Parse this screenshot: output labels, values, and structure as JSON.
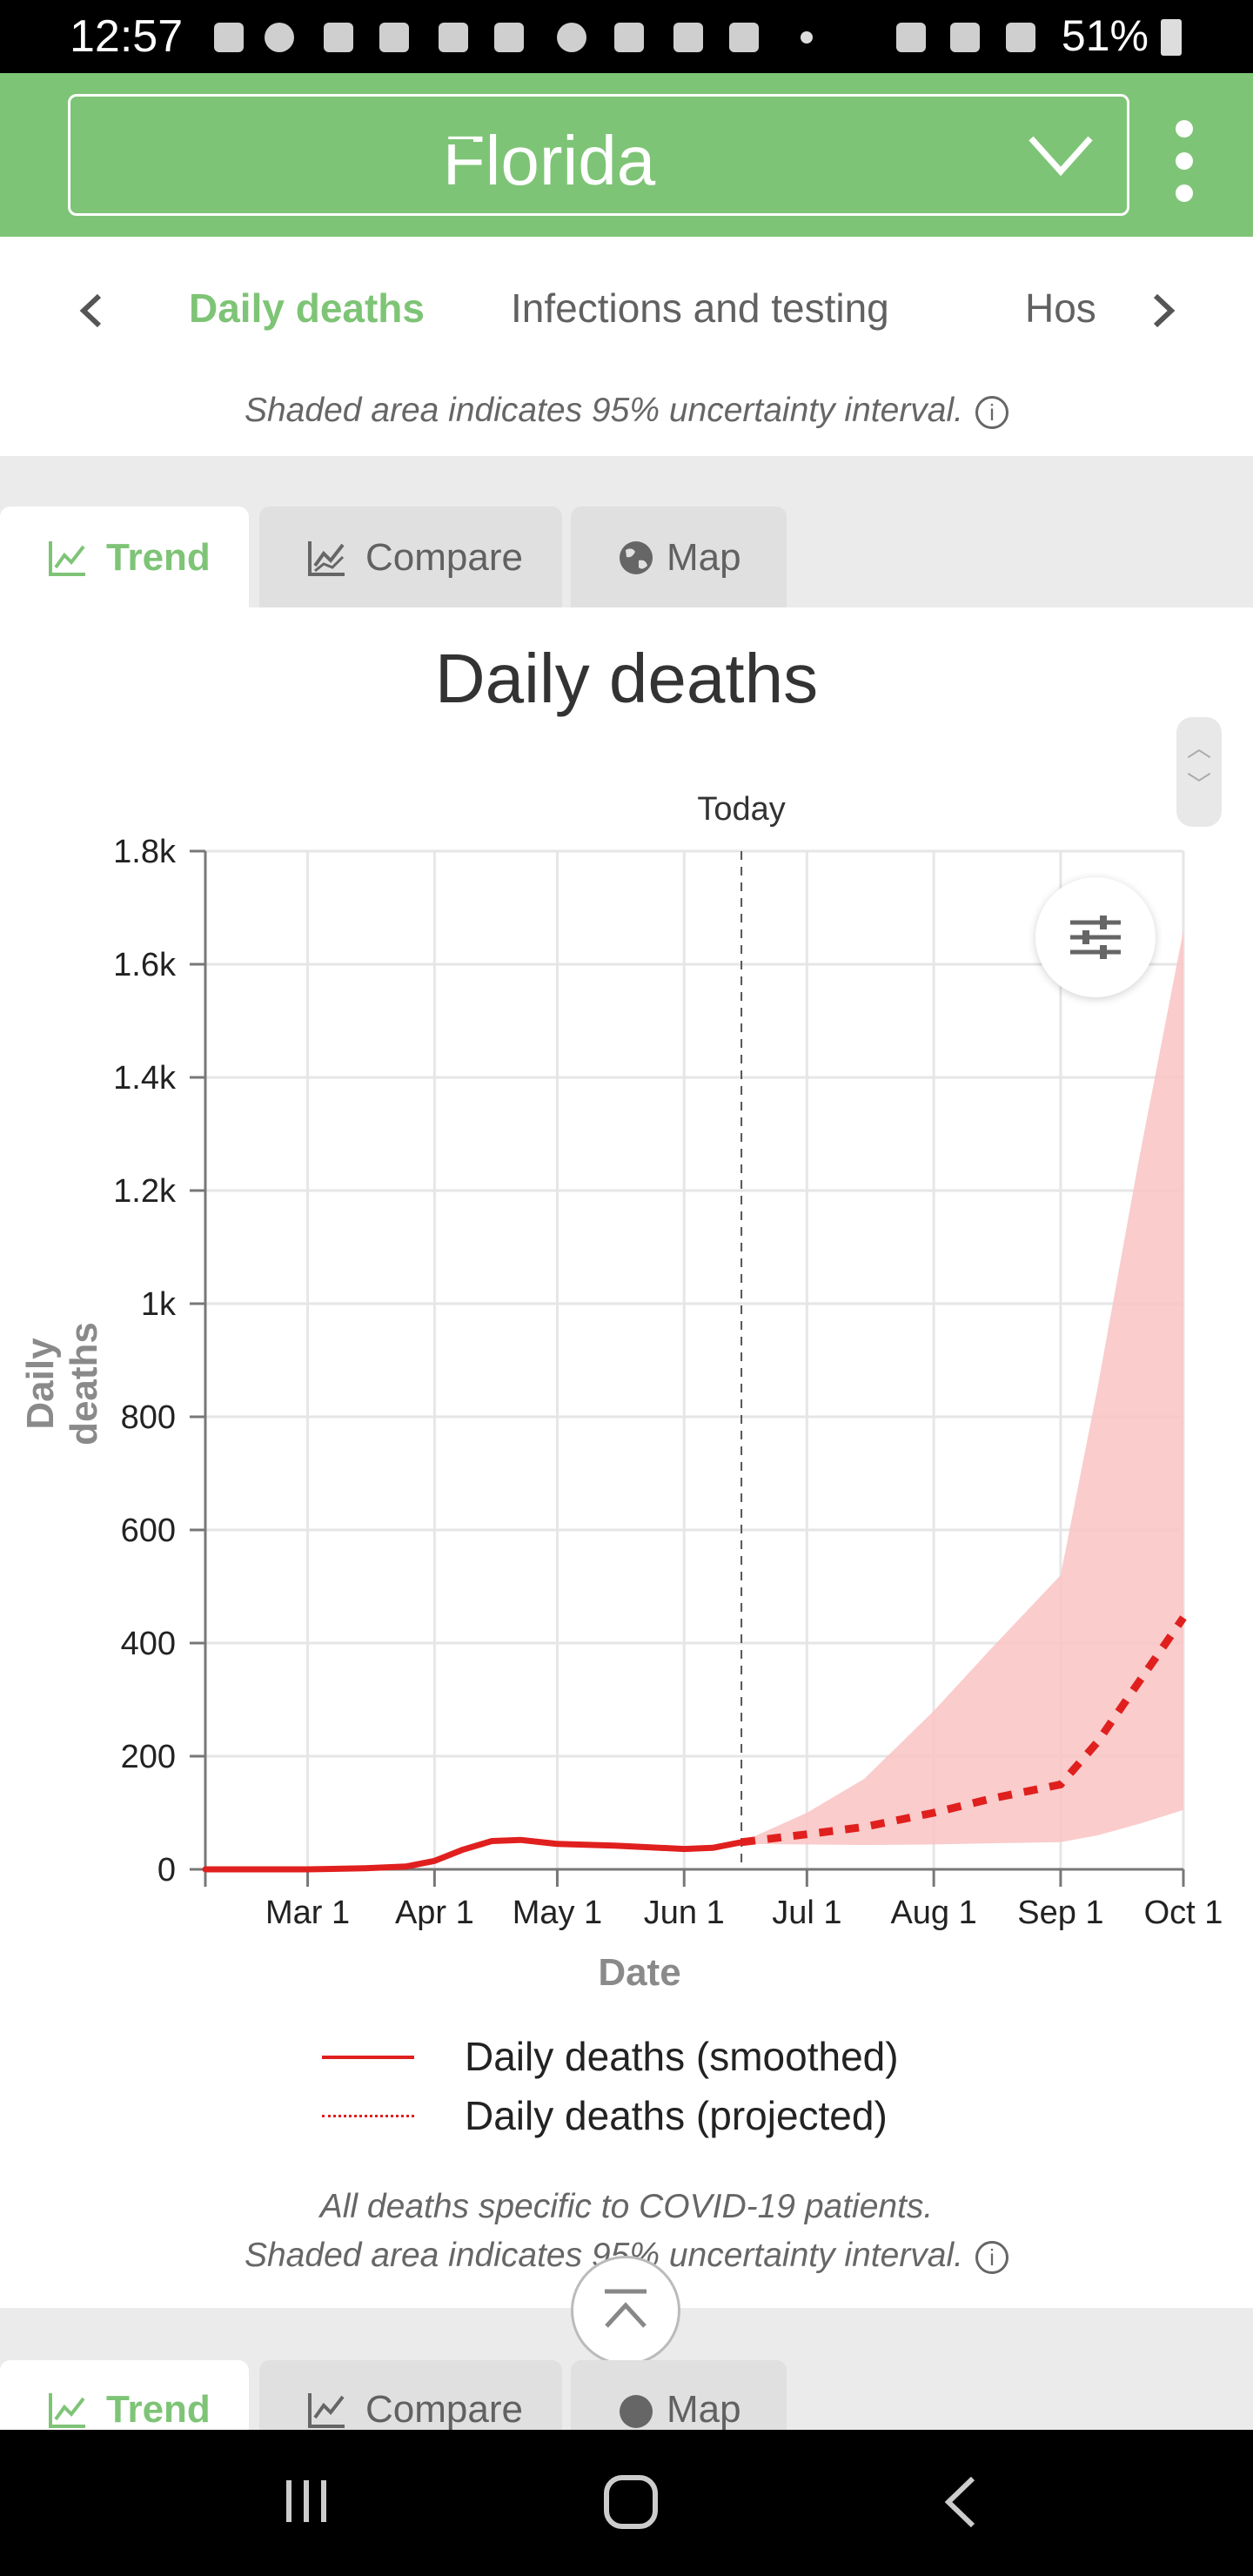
{
  "status_bar": {
    "time": "12:57",
    "battery": "51%"
  },
  "header": {
    "state": "Florida"
  },
  "tabs": [
    {
      "label": "Daily deaths",
      "active": true
    },
    {
      "label": "Infections and testing",
      "active": false
    },
    {
      "label": "Hos",
      "active": false
    }
  ],
  "top_note": "Shaded area indicates 95% uncertainty interval.",
  "view_tabs": [
    {
      "label": "Trend",
      "active": true
    },
    {
      "label": "Compare",
      "active": false
    },
    {
      "label": "Map",
      "active": false
    }
  ],
  "chart_data": {
    "type": "line",
    "title": "Daily deaths",
    "xlabel": "Date",
    "ylabel": "Daily deaths",
    "x_ticks": [
      "Mar 1",
      "Apr 1",
      "May 1",
      "Jun 1",
      "Jul 1",
      "Aug 1",
      "Sep 1",
      "Oct 1"
    ],
    "y_ticks": [
      "0",
      "200",
      "400",
      "600",
      "800",
      "1k",
      "1.2k",
      "1.4k",
      "1.6k",
      "1.8k"
    ],
    "ylim": [
      0,
      1800
    ],
    "xlim": [
      "2020-02-05",
      "2020-10-01"
    ],
    "today_label": "Today",
    "today": "2020-06-15",
    "grid": true,
    "series": [
      {
        "name": "Daily deaths (smoothed)",
        "style": "solid",
        "color": "#e0201e",
        "points": [
          [
            "2020-02-05",
            0
          ],
          [
            "2020-03-01",
            0
          ],
          [
            "2020-03-15",
            2
          ],
          [
            "2020-03-25",
            5
          ],
          [
            "2020-04-01",
            15
          ],
          [
            "2020-04-08",
            35
          ],
          [
            "2020-04-15",
            50
          ],
          [
            "2020-04-22",
            52
          ],
          [
            "2020-05-01",
            45
          ],
          [
            "2020-05-15",
            42
          ],
          [
            "2020-06-01",
            36
          ],
          [
            "2020-06-08",
            38
          ],
          [
            "2020-06-15",
            48
          ]
        ]
      },
      {
        "name": "Daily deaths (projected)",
        "style": "dotted",
        "color": "#e0201e",
        "points": [
          [
            "2020-06-15",
            48
          ],
          [
            "2020-07-01",
            62
          ],
          [
            "2020-07-15",
            75
          ],
          [
            "2020-08-01",
            100
          ],
          [
            "2020-08-15",
            125
          ],
          [
            "2020-09-01",
            150
          ],
          [
            "2020-09-10",
            225
          ],
          [
            "2020-09-20",
            330
          ],
          [
            "2020-10-01",
            445
          ]
        ]
      }
    ],
    "uncertainty": {
      "color": "#f9c3c3",
      "points": [
        [
          "2020-06-15",
          48,
          45
        ],
        [
          "2020-07-01",
          100,
          44
        ],
        [
          "2020-07-15",
          160,
          43
        ],
        [
          "2020-08-01",
          280,
          44
        ],
        [
          "2020-08-15",
          390,
          46
        ],
        [
          "2020-09-01",
          520,
          48
        ],
        [
          "2020-09-10",
          850,
          60
        ],
        [
          "2020-09-20",
          1250,
          80
        ],
        [
          "2020-10-01",
          1660,
          105
        ]
      ]
    }
  },
  "bottom_note": [
    "All deaths specific to COVID-19 patients.",
    "Shaded area indicates 95% uncertainty interval."
  ],
  "second_view_tabs": [
    {
      "label": "Trend",
      "active": true
    },
    {
      "label": "Compare",
      "active": false
    },
    {
      "label": "Map",
      "active": false
    }
  ]
}
